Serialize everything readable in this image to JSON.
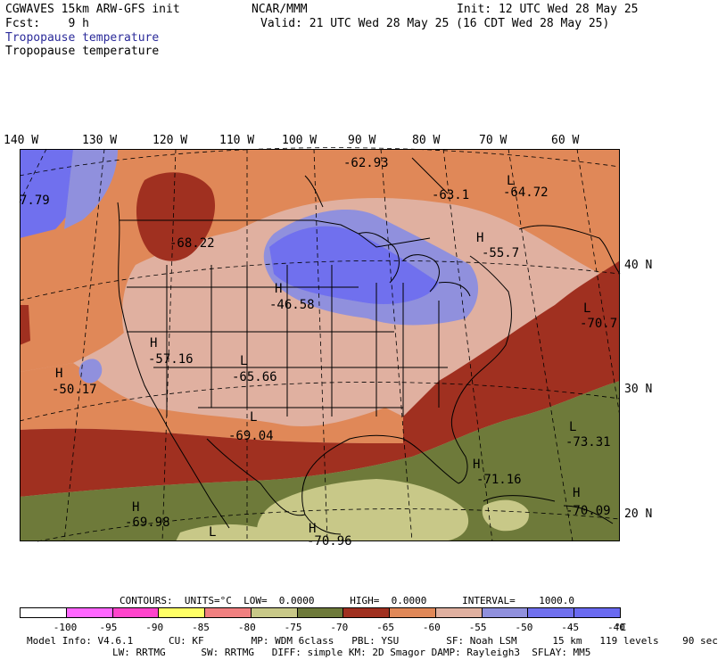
{
  "header": {
    "left_line1": "CGWAVES 15km ARW-GFS init",
    "left_line2": "Fcst:    9 h",
    "center": "NCAR/MMM",
    "right_line1": "Init: 12 UTC Wed 28 May 25",
    "right_line2": "Valid: 21 UTC Wed 28 May 25 (16 CDT Wed 28 May 25)",
    "field_title_1": "Tropopause temperature",
    "field_title_2": "Tropopause temperature"
  },
  "longitudes": [
    "140 W",
    "130 W",
    "120 W",
    "110 W",
    "100 W",
    "90 W",
    "80 W",
    "70 W",
    "60 W"
  ],
  "latitudes": [
    "40 N",
    "30 N",
    "20 N"
  ],
  "map_labels": [
    {
      "text": "-62.93"
    },
    {
      "text": "L"
    },
    {
      "text": "-64.72"
    },
    {
      "text": "-63.1"
    },
    {
      "text": "7.79"
    },
    {
      "text": "-68.22"
    },
    {
      "text": "H"
    },
    {
      "text": "-55.7"
    },
    {
      "text": "H"
    },
    {
      "text": "-46.58"
    },
    {
      "text": "L"
    },
    {
      "text": "-70.7"
    },
    {
      "text": "H"
    },
    {
      "text": "-57.16"
    },
    {
      "text": "L"
    },
    {
      "text": "-65.66"
    },
    {
      "text": "H"
    },
    {
      "text": "-50.17"
    },
    {
      "text": "L"
    },
    {
      "text": "-69.04"
    },
    {
      "text": "L"
    },
    {
      "text": "-73.31"
    },
    {
      "text": "H"
    },
    {
      "text": "-71.16"
    },
    {
      "text": "H"
    },
    {
      "text": "-70.09"
    },
    {
      "text": "H"
    },
    {
      "text": "-69.98"
    },
    {
      "text": "L"
    },
    {
      "text": "H"
    },
    {
      "text": "-70.96"
    }
  ],
  "contours_line": "CONTOURS:  UNITS=°C  LOW=  0.0000      HIGH=  0.0000      INTERVAL=    1000.0",
  "colorbar": {
    "colors": [
      "#ffffff",
      "#ff66ff",
      "#ff44cc",
      "#ffff66",
      "#f08080",
      "#c8c888",
      "#6e7a3a",
      "#a03020",
      "#e08858",
      "#e0b0a0",
      "#9090dd",
      "#7070ee",
      "#6a6af0"
    ],
    "labels": [
      "-100",
      "-95",
      "-90",
      "-85",
      "-80",
      "-75",
      "-70",
      "-65",
      "-60",
      "-55",
      "-50",
      "-45",
      "-40"
    ],
    "unit": "°C"
  },
  "footer": {
    "line1": "Model Info: V4.6.1      CU: KF        MP: WDM 6class   PBL: YSU        SF: Noah LSM      15 km   119 levels    90 sec",
    "line2": "LW: RRTMG      SW: RRTMG   DIFF: simple KM: 2D Smagor DAMP: Rayleigh3  SFLAY: MM5"
  },
  "palette": {
    "purple": "#7070ee",
    "blue_light": "#9090dd",
    "pink": "#e0b0a0",
    "orange": "#e08858",
    "red": "#a03020",
    "olive": "#6e7a3a",
    "khaki": "#c8c888"
  }
}
